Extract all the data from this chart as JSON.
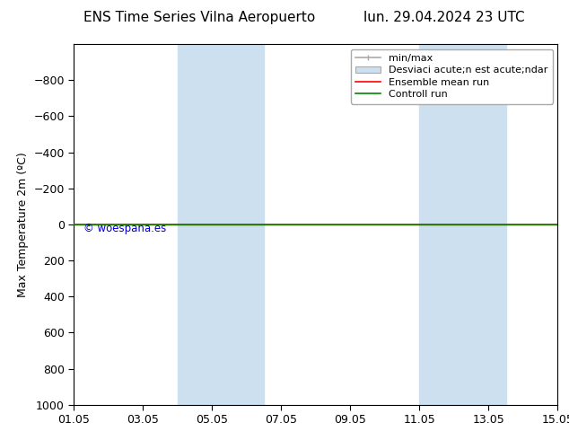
{
  "title_left": "ENS Time Series Vilna Aeropuerto",
  "title_right": "lun. 29.04.2024 23 UTC",
  "ylabel": "Max Temperature 2m (ºC)",
  "ylim_bottom": 1000,
  "ylim_top": -1000,
  "yticks": [
    -800,
    -600,
    -400,
    -200,
    0,
    200,
    400,
    600,
    800,
    1000
  ],
  "xtick_labels": [
    "01.05",
    "03.05",
    "05.05",
    "07.05",
    "09.05",
    "11.05",
    "13.05",
    "15.05"
  ],
  "xtick_positions": [
    0,
    2,
    4,
    6,
    8,
    10,
    12,
    14
  ],
  "xlim": [
    0,
    14
  ],
  "shaded_bands": [
    {
      "x_start": 3.0,
      "x_end": 5.5
    },
    {
      "x_start": 10.0,
      "x_end": 12.5
    }
  ],
  "band_color": "#cce0f0",
  "green_line_y": 0,
  "red_line_y": 0,
  "green_color": "#008800",
  "red_color": "#ff0000",
  "watermark": "© woespana.es",
  "watermark_color": "#0000cc",
  "background_color": "#ffffff",
  "legend_item0": "min/max",
  "legend_item1": "Desviaci acute;n est acute;ndar",
  "legend_item2": "Ensemble mean run",
  "legend_item3": "Controll run",
  "title_fontsize": 11,
  "axis_label_fontsize": 9,
  "tick_fontsize": 9,
  "legend_fontsize": 8
}
